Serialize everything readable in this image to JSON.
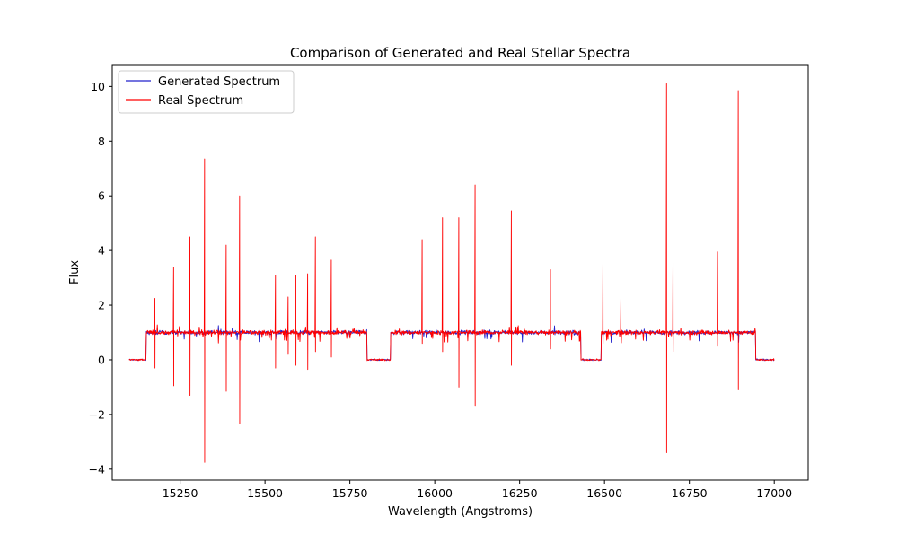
{
  "chart_data": {
    "type": "line",
    "title": "Comparison of Generated and Real Stellar Spectra",
    "xlabel": "Wavelength (Angstroms)",
    "ylabel": "Flux",
    "xlim": [
      15050,
      17100
    ],
    "ylim": [
      -4.4,
      10.8
    ],
    "xticks": [
      15250,
      15500,
      15750,
      16000,
      16250,
      16500,
      16750,
      17000
    ],
    "yticks": [
      -4,
      -2,
      0,
      2,
      4,
      6,
      8,
      10
    ],
    "grid": false,
    "legend_position": "top-left",
    "detector_chips": [
      {
        "start": 15150,
        "end": 15800
      },
      {
        "start": 15870,
        "end": 16430
      },
      {
        "start": 16490,
        "end": 16945
      }
    ],
    "spectrum_range": [
      15100,
      17000
    ],
    "series": [
      {
        "name": "Generated Spectrum",
        "color": "#2222cc",
        "continuum": 1.0,
        "gap_level": 0.0
      },
      {
        "name": "Real Spectrum",
        "color": "#ff0000",
        "continuum": 1.0,
        "spikes": [
          {
            "x": 15175,
            "max": 2.25,
            "min": -0.3
          },
          {
            "x": 15230,
            "max": 3.4,
            "min": -0.95
          },
          {
            "x": 15278,
            "max": 4.5,
            "min": -1.3
          },
          {
            "x": 15322,
            "max": 7.35,
            "min": -3.75
          },
          {
            "x": 15385,
            "max": 4.2,
            "min": -1.15
          },
          {
            "x": 15425,
            "max": 6.0,
            "min": -2.35
          },
          {
            "x": 15530,
            "max": 3.1,
            "min": -0.3
          },
          {
            "x": 15568,
            "max": 2.3,
            "min": 0.2
          },
          {
            "x": 15590,
            "max": 3.1,
            "min": -0.2
          },
          {
            "x": 15625,
            "max": 3.15,
            "min": -0.35
          },
          {
            "x": 15648,
            "max": 4.5,
            "min": 0.3
          },
          {
            "x": 15695,
            "max": 3.65,
            "min": 0.1
          },
          {
            "x": 15962,
            "max": 4.4,
            "min": 0.6
          },
          {
            "x": 16022,
            "max": 5.2,
            "min": 0.3
          },
          {
            "x": 16070,
            "max": 5.2,
            "min": -1.0
          },
          {
            "x": 16118,
            "max": 6.4,
            "min": -1.7
          },
          {
            "x": 16225,
            "max": 5.45,
            "min": -0.2
          },
          {
            "x": 16340,
            "max": 3.3,
            "min": 0.4
          },
          {
            "x": 16495,
            "max": 3.9,
            "min": 0.6
          },
          {
            "x": 16548,
            "max": 2.3,
            "min": 0.6
          },
          {
            "x": 16682,
            "max": 10.1,
            "min": -3.4
          },
          {
            "x": 16702,
            "max": 4.0,
            "min": 0.3
          },
          {
            "x": 16832,
            "max": 3.95,
            "min": 0.5
          },
          {
            "x": 16893,
            "max": 9.85,
            "min": -1.1
          }
        ]
      }
    ]
  }
}
